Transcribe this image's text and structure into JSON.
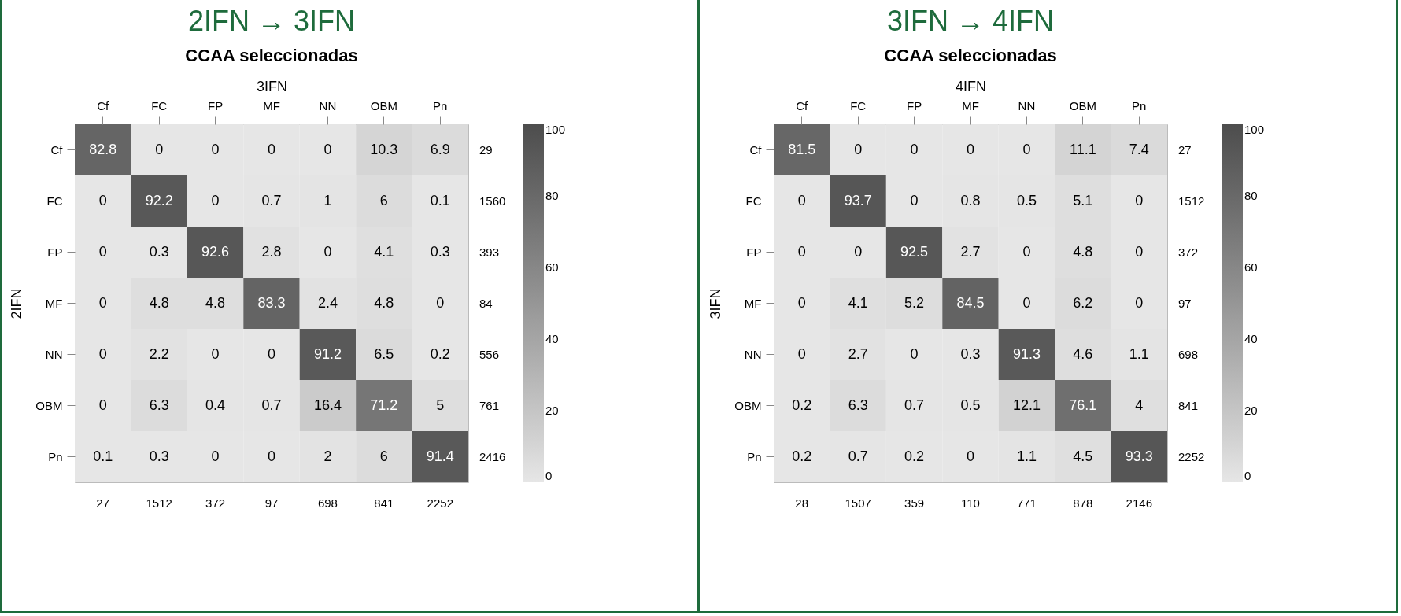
{
  "chart_data": [
    {
      "type": "heatmap",
      "title": "2IFN → 3IFN",
      "subtitle": "CCAA seleccionadas",
      "xlabel": "3IFN",
      "ylabel": "2IFN",
      "categories": [
        "Cf",
        "FC",
        "FP",
        "MF",
        "NN",
        "OBM",
        "Pn"
      ],
      "y_categories": [
        "Cf",
        "FC",
        "FP",
        "MF",
        "NN",
        "OBM",
        "Pn"
      ],
      "y2_categories": [
        "29",
        "1560",
        "393",
        "84",
        "556",
        "761",
        "2416"
      ],
      "cells": [
        [
          82.8,
          0,
          0,
          0,
          0,
          10.3,
          6.9
        ],
        [
          0,
          92.2,
          0,
          0.7,
          1,
          6,
          0.1
        ],
        [
          0,
          0.3,
          92.6,
          2.8,
          0,
          4.1,
          0.3
        ],
        [
          0,
          4.8,
          4.8,
          83.3,
          2.4,
          4.8,
          0
        ],
        [
          0,
          2.2,
          0,
          0,
          91.2,
          6.5,
          0.2
        ],
        [
          0,
          6.3,
          0.4,
          0.7,
          16.4,
          71.2,
          5
        ],
        [
          0.1,
          0.3,
          0,
          0,
          2,
          6,
          91.4
        ]
      ],
      "data_labels": true,
      "clim": [
        0,
        100
      ],
      "cticks": [
        0,
        20,
        40,
        60,
        80,
        100
      ],
      "annotations": [
        "27",
        "1512",
        "372",
        "97",
        "698",
        "841",
        "2252"
      ]
    },
    {
      "type": "heatmap",
      "title": "3IFN → 4IFN",
      "subtitle": "CCAA seleccionadas",
      "xlabel": "4IFN",
      "ylabel": "3IFN",
      "categories": [
        "Cf",
        "FC",
        "FP",
        "MF",
        "NN",
        "OBM",
        "Pn"
      ],
      "y_categories": [
        "Cf",
        "FC",
        "FP",
        "MF",
        "NN",
        "OBM",
        "Pn"
      ],
      "y2_categories": [
        "27",
        "1512",
        "372",
        "97",
        "698",
        "841",
        "2252"
      ],
      "cells": [
        [
          81.5,
          0,
          0,
          0,
          0,
          11.1,
          7.4
        ],
        [
          0,
          93.7,
          0,
          0.8,
          0.5,
          5.1,
          0
        ],
        [
          0,
          0,
          92.5,
          2.7,
          0,
          4.8,
          0
        ],
        [
          0,
          4.1,
          5.2,
          84.5,
          0,
          6.2,
          0
        ],
        [
          0,
          2.7,
          0,
          0.3,
          91.3,
          4.6,
          1.1
        ],
        [
          0.2,
          6.3,
          0.7,
          0.5,
          12.1,
          76.1,
          4
        ],
        [
          0.2,
          0.7,
          0.2,
          0,
          1.1,
          4.5,
          93.3
        ]
      ],
      "data_labels": true,
      "clim": [
        0,
        100
      ],
      "cticks": [
        0,
        20,
        40,
        60,
        80,
        100
      ],
      "annotations": [
        "28",
        "1507",
        "359",
        "110",
        "771",
        "878",
        "2146"
      ]
    }
  ]
}
